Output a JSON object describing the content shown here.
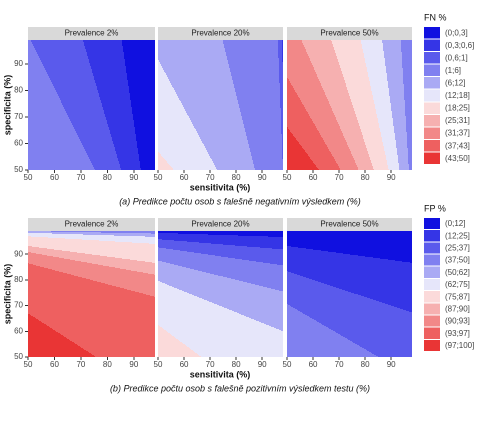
{
  "chart_data": [
    {
      "type": "contour",
      "facets": [
        {
          "value": 2,
          "label": "Prevalence 2%"
        },
        {
          "value": 20,
          "label": "Prevalence 20%"
        },
        {
          "value": 50,
          "label": "Prevalence 50%"
        }
      ],
      "x_label": "sensitivita (%)",
      "y_label": "specificita (%)",
      "caption": "(a) Predikce počtu osob s falešně negativním výsledkem (%)",
      "xlim": [
        50,
        98
      ],
      "ylim": [
        50,
        99
      ],
      "xticks": [
        50,
        60,
        70,
        80,
        90
      ],
      "yticks": [
        50,
        60,
        70,
        80,
        90
      ],
      "legend_title": "FN %",
      "breaks": [
        0,
        0.3,
        0.6,
        1,
        6,
        12,
        18,
        25,
        31,
        37,
        43,
        50
      ],
      "legend": [
        {
          "label": "(0;0,3]",
          "color": "#1010e0"
        },
        {
          "label": "(0,3;0,6]",
          "color": "#3535e6"
        },
        {
          "label": "(0,6;1]",
          "color": "#5a5aec"
        },
        {
          "label": "(1;6]",
          "color": "#8080f0"
        },
        {
          "label": "(6;12]",
          "color": "#aaaaf4"
        },
        {
          "label": "(12;18]",
          "color": "#e6e6fa"
        },
        {
          "label": "(18;25]",
          "color": "#fbdada"
        },
        {
          "label": "(25;31]",
          "color": "#f6b0b0"
        },
        {
          "label": "(31;37]",
          "color": "#f28888"
        },
        {
          "label": "(37;43]",
          "color": "#ee6060"
        },
        {
          "label": "(43;50]",
          "color": "#e93535"
        }
      ]
    },
    {
      "type": "contour",
      "facets": [
        {
          "value": 2,
          "label": "Prevalence 2%"
        },
        {
          "value": 20,
          "label": "Prevalence 20%"
        },
        {
          "value": 50,
          "label": "Prevalence 50%"
        }
      ],
      "x_label": "sensitivita (%)",
      "y_label": "specificita (%)",
      "caption": "(b) Predikce počtu osob s falešně pozitivním výsledkem testu (%)",
      "xlim": [
        50,
        98
      ],
      "ylim": [
        50,
        99
      ],
      "xticks": [
        50,
        60,
        70,
        80,
        90
      ],
      "yticks": [
        50,
        60,
        70,
        80,
        90
      ],
      "legend_title": "FP %",
      "breaks": [
        0,
        12,
        25,
        37,
        50,
        62,
        75,
        87,
        90,
        93,
        97,
        100
      ],
      "legend": [
        {
          "label": "(0;12]",
          "color": "#1010e0"
        },
        {
          "label": "(12;25]",
          "color": "#3535e6"
        },
        {
          "label": "(25;37]",
          "color": "#5a5aec"
        },
        {
          "label": "(37;50]",
          "color": "#8080f0"
        },
        {
          "label": "(50;62]",
          "color": "#aaaaf4"
        },
        {
          "label": "(62;75]",
          "color": "#e6e6fa"
        },
        {
          "label": "(75;87]",
          "color": "#fbdada"
        },
        {
          "label": "(87;90]",
          "color": "#f6b0b0"
        },
        {
          "label": "(90;93]",
          "color": "#f28888"
        },
        {
          "label": "(93;97]",
          "color": "#ee6060"
        },
        {
          "label": "(97;100]",
          "color": "#e93535"
        }
      ]
    }
  ]
}
